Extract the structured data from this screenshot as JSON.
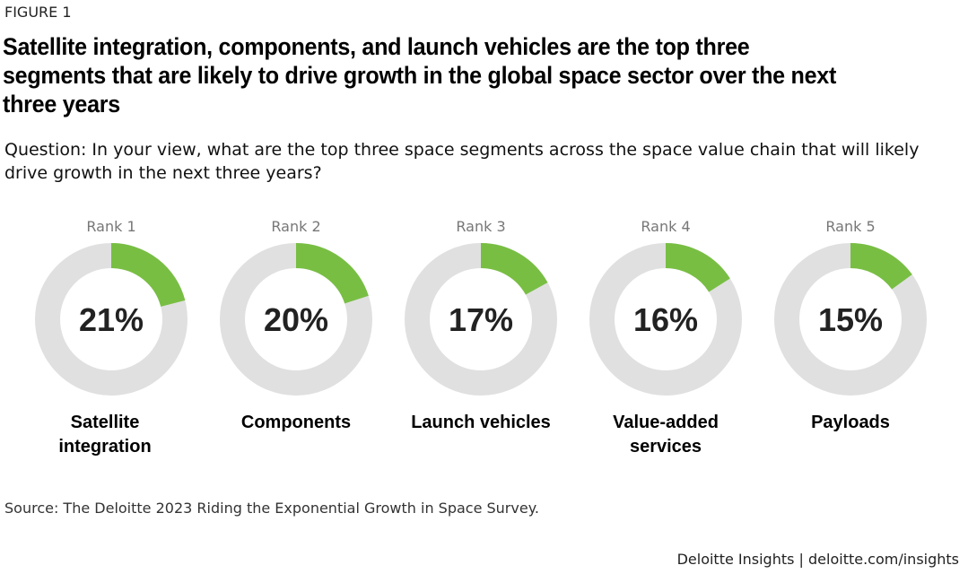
{
  "figure_label": "FIGURE 1",
  "title": "Satellite integration, components, and launch vehicles are the top three segments that are likely to drive growth in the global space sector over the next three years",
  "question": "Question: In your view, what are the top three space segments across the space value chain that will likely drive growth in the next three years?",
  "chart_data": {
    "type": "pie",
    "subtype": "donut",
    "items": [
      {
        "rank": "Rank 1",
        "label": "Satellite integration",
        "value": 21,
        "value_label": "21%"
      },
      {
        "rank": "Rank 2",
        "label": "Components",
        "value": 20,
        "value_label": "20%"
      },
      {
        "rank": "Rank 3",
        "label": "Launch vehicles",
        "value": 17,
        "value_label": "17%"
      },
      {
        "rank": "Rank 4",
        "label": "Value-added services",
        "value": 16,
        "value_label": "16%"
      },
      {
        "rank": "Rank 5",
        "label": "Payloads",
        "value": 15,
        "value_label": "15%"
      }
    ],
    "colors": {
      "value": "#78be43",
      "remainder": "#e0e0e0"
    }
  },
  "source": "Source: The Deloitte 2023 Riding the Exponential Growth in Space Survey.",
  "credit": "Deloitte Insights | deloitte.com/insights"
}
